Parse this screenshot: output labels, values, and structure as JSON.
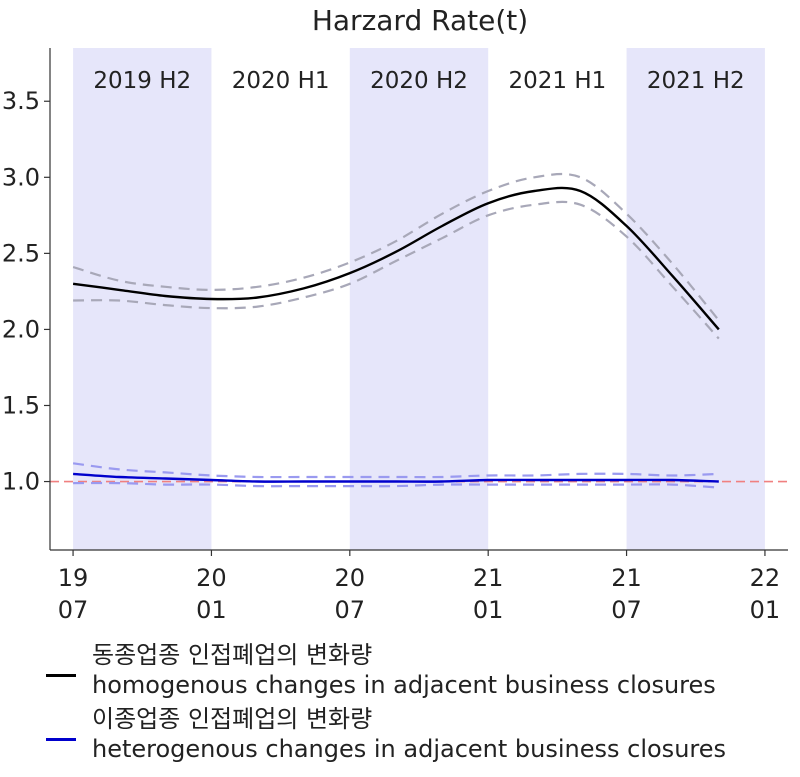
{
  "chart_data": {
    "type": "line",
    "title": "Harzard Rate(t)",
    "x_ticks": [
      {
        "value": "2019-07",
        "line1": "19",
        "line2": "07"
      },
      {
        "value": "2020-01",
        "line1": "20",
        "line2": "01"
      },
      {
        "value": "2020-07",
        "line1": "20",
        "line2": "07"
      },
      {
        "value": "2021-01",
        "line1": "21",
        "line2": "01"
      },
      {
        "value": "2021-07",
        "line1": "21",
        "line2": "07"
      },
      {
        "value": "2022-01",
        "line1": "22",
        "line2": "01"
      }
    ],
    "y_ticks": [
      "1.0",
      "1.5",
      "2.0",
      "2.5",
      "3.0",
      "3.5"
    ],
    "xlim": [
      "2019-06",
      "2022-02"
    ],
    "ylim": [
      0.55,
      3.85
    ],
    "reference_line": {
      "y": 1.0,
      "color": "#f08080",
      "style": "dashed"
    },
    "periods": [
      {
        "label": "2019 H2",
        "start": "2019-07",
        "end": "2020-01",
        "shaded": true
      },
      {
        "label": "2020 H1",
        "start": "2020-01",
        "end": "2020-07",
        "shaded": false
      },
      {
        "label": "2020 H2",
        "start": "2020-07",
        "end": "2021-01",
        "shaded": true
      },
      {
        "label": "2021 H1",
        "start": "2021-01",
        "end": "2021-07",
        "shaded": false
      },
      {
        "label": "2021 H2",
        "start": "2021-07",
        "end": "2022-01",
        "shaded": true
      }
    ],
    "x": [
      "2019-07",
      "2019-09",
      "2019-11",
      "2020-01",
      "2020-03",
      "2020-05",
      "2020-07",
      "2020-09",
      "2020-11",
      "2021-01",
      "2021-03",
      "2021-05",
      "2021-07",
      "2021-09",
      "2021-11"
    ],
    "series": [
      {
        "name": "동종업종 인접폐업의 변화량 homogenous changes in adjacent business closures",
        "color": "#000000",
        "values": [
          2.3,
          2.26,
          2.22,
          2.2,
          2.21,
          2.27,
          2.37,
          2.51,
          2.68,
          2.83,
          2.91,
          2.91,
          2.68,
          2.35,
          2.0
        ],
        "ci_upper": [
          2.41,
          2.32,
          2.28,
          2.26,
          2.28,
          2.34,
          2.44,
          2.58,
          2.76,
          2.91,
          3.0,
          3.0,
          2.76,
          2.43,
          2.06
        ],
        "ci_lower": [
          2.19,
          2.19,
          2.16,
          2.14,
          2.15,
          2.21,
          2.3,
          2.45,
          2.6,
          2.75,
          2.82,
          2.82,
          2.61,
          2.28,
          1.94
        ],
        "ci_color": "#a8a8b8"
      },
      {
        "name": "이종업종 인접폐업의 변화량 heterogenous changes in adjacent business closures",
        "color": "#0000cc",
        "values": [
          1.05,
          1.03,
          1.02,
          1.01,
          1.0,
          1.0,
          1.0,
          1.0,
          1.0,
          1.01,
          1.01,
          1.01,
          1.01,
          1.01,
          1.0
        ],
        "ci_upper": [
          1.12,
          1.08,
          1.06,
          1.04,
          1.03,
          1.03,
          1.03,
          1.03,
          1.03,
          1.04,
          1.04,
          1.05,
          1.05,
          1.04,
          1.05
        ],
        "ci_lower": [
          0.99,
          0.99,
          0.98,
          0.98,
          0.97,
          0.97,
          0.97,
          0.97,
          0.98,
          0.98,
          0.98,
          0.98,
          0.98,
          0.98,
          0.96
        ],
        "ci_color": "#9a9af0"
      }
    ],
    "grid": false,
    "legend_position": "bottom",
    "background_shade_color": "#e6e6fa"
  },
  "legend": [
    {
      "line1": "동종업종 인접폐업의 변화량",
      "line2": "homogenous changes in adjacent business closures",
      "color": "#000000"
    },
    {
      "line1": "이종업종 인접폐업의 변화량",
      "line2": "heterogenous changes in adjacent business closures",
      "color": "#0000cc"
    }
  ]
}
